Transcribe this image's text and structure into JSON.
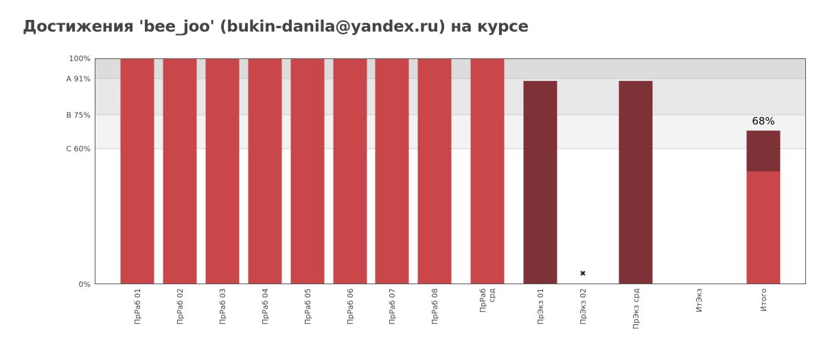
{
  "page": {
    "title": "Достижения 'bee_joo' (bukin-danila@yandex.ru) на курсе"
  },
  "colors": {
    "bar_primary": "#c9474b",
    "bar_dark": "#7e3136",
    "band_a": "#dcdcdc",
    "band_b": "#e8e8e8",
    "band_c": "#f3f3f3",
    "axis": "#555555"
  },
  "chart_data": {
    "type": "bar",
    "title": "",
    "xlabel": "",
    "ylabel": "",
    "ylim": [
      0,
      100
    ],
    "y_ticks": [
      {
        "value": 0,
        "label": "0%"
      },
      {
        "value": 60,
        "label": "C 60%"
      },
      {
        "value": 75,
        "label": "B 75%"
      },
      {
        "value": 91,
        "label": "A 91%"
      },
      {
        "value": 100,
        "label": "100%"
      }
    ],
    "grade_bands": [
      {
        "from": 91,
        "to": 100,
        "color": "#dcdcdc"
      },
      {
        "from": 75,
        "to": 91,
        "color": "#e8e8e8"
      },
      {
        "from": 60,
        "to": 75,
        "color": "#f3f3f3"
      }
    ],
    "categories": [
      "ПрРаб 01",
      "ПрРаб 02",
      "ПрРаб 03",
      "ПрРаб 04",
      "ПрРаб 05",
      "ПрРаб 06",
      "ПрРаб 07",
      "ПрРаб 08",
      "ПрРаб срд",
      "ПрЭкз 01",
      "ПрЭкз 02",
      "ПрЭкз срд",
      "ИтЭкз",
      "Итого"
    ],
    "bars": [
      {
        "value": 100,
        "color": "#c9474b"
      },
      {
        "value": 100,
        "color": "#c9474b"
      },
      {
        "value": 100,
        "color": "#c9474b"
      },
      {
        "value": 100,
        "color": "#c9474b"
      },
      {
        "value": 100,
        "color": "#c9474b"
      },
      {
        "value": 100,
        "color": "#c9474b"
      },
      {
        "value": 100,
        "color": "#c9474b"
      },
      {
        "value": 100,
        "color": "#c9474b"
      },
      {
        "value": 100,
        "color": "#c9474b"
      },
      {
        "value": 90,
        "color": "#7e3136"
      },
      {
        "value": null,
        "missing_marker": "✖"
      },
      {
        "value": 90,
        "color": "#7e3136"
      },
      {
        "value": null
      },
      {
        "stack": [
          {
            "value": 50,
            "color": "#c9474b"
          },
          {
            "value": 18,
            "color": "#7e3136"
          }
        ],
        "total_label": "68%"
      }
    ]
  }
}
